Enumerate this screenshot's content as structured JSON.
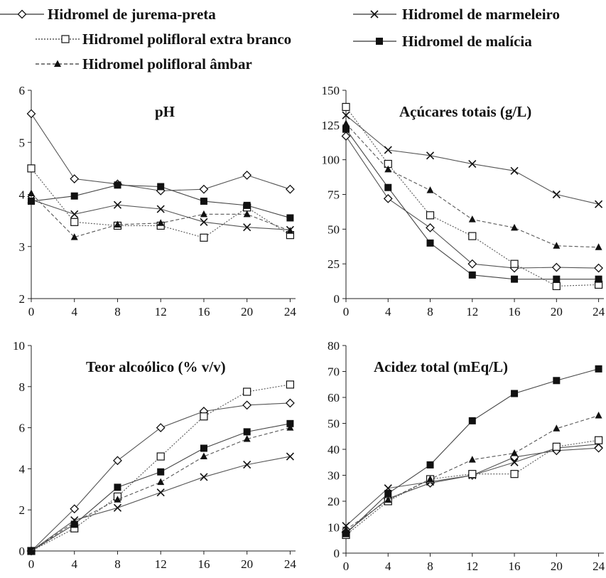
{
  "legend": [
    {
      "label": "Hidromel de jurema-preta",
      "marker": "diamond-open",
      "line": "solid"
    },
    {
      "label": "Hidromel de marmeleiro",
      "marker": "x",
      "line": "solid"
    },
    {
      "label": "Hidromel polifloral extra branco",
      "marker": "square-open",
      "line": "dotted"
    },
    {
      "label": "Hidromel de malícia",
      "marker": "square-filled",
      "line": "solid"
    },
    {
      "label": "Hidromel polifloral âmbar",
      "marker": "triangle-filled",
      "line": "dashed"
    }
  ],
  "chart_data": [
    {
      "type": "line",
      "title": "pH",
      "xlabel": "",
      "ylabel": "",
      "x": [
        0,
        4,
        8,
        12,
        16,
        20,
        24
      ],
      "xlim": [
        0,
        24.5
      ],
      "ylim": [
        2,
        6
      ],
      "xticks": [
        0,
        4,
        8,
        12,
        16,
        20,
        24
      ],
      "yticks": [
        2,
        3,
        4,
        5,
        6
      ],
      "grid": false,
      "series": [
        {
          "name": "Hidromel de jurema-preta",
          "values": [
            5.55,
            4.3,
            4.2,
            4.07,
            4.1,
            4.37,
            4.1
          ]
        },
        {
          "name": "Hidromel de marmeleiro",
          "values": [
            3.9,
            3.62,
            3.8,
            3.72,
            3.47,
            3.37,
            3.32
          ]
        },
        {
          "name": "Hidromel polifloral extra branco",
          "values": [
            4.5,
            3.47,
            3.4,
            3.4,
            3.17,
            3.75,
            3.22
          ]
        },
        {
          "name": "Hidromel de malícia",
          "values": [
            3.87,
            3.97,
            4.18,
            4.15,
            3.87,
            3.79,
            3.55
          ]
        },
        {
          "name": "Hidromel polifloral âmbar",
          "values": [
            4.02,
            3.18,
            3.42,
            3.45,
            3.62,
            3.62,
            3.3
          ]
        }
      ]
    },
    {
      "type": "line",
      "title": "Açúcares totais (g/L)",
      "xlabel": "",
      "ylabel": "",
      "x": [
        0,
        4,
        8,
        12,
        16,
        20,
        24
      ],
      "xlim": [
        0,
        24.5
      ],
      "ylim": [
        0,
        150
      ],
      "xticks": [
        0,
        4,
        8,
        12,
        16,
        20,
        24
      ],
      "yticks": [
        0,
        25,
        50,
        75,
        100,
        125,
        150
      ],
      "grid": false,
      "series": [
        {
          "name": "Hidromel de jurema-preta",
          "values": [
            117,
            72,
            51,
            25,
            22,
            22.5,
            22
          ]
        },
        {
          "name": "Hidromel de marmeleiro",
          "values": [
            132,
            107,
            103,
            97,
            92,
            75,
            68
          ]
        },
        {
          "name": "Hidromel polifloral extra branco",
          "values": [
            138,
            97,
            60,
            45,
            25,
            9,
            10
          ]
        },
        {
          "name": "Hidromel de malícia",
          "values": [
            122,
            80,
            40,
            17,
            14,
            14,
            14
          ]
        },
        {
          "name": "Hidromel polifloral âmbar",
          "values": [
            126,
            93,
            78,
            57,
            51,
            38,
            37
          ]
        }
      ]
    },
    {
      "type": "line",
      "title": "Teor alcoólico (% v/v)",
      "xlabel": "",
      "ylabel": "",
      "x": [
        0,
        4,
        8,
        12,
        16,
        20,
        24
      ],
      "xlim": [
        0,
        24.5
      ],
      "ylim": [
        0,
        10
      ],
      "xticks": [
        0,
        4,
        8,
        12,
        16,
        20,
        24
      ],
      "yticks": [
        0,
        2,
        4,
        6,
        8,
        10
      ],
      "grid": false,
      "series": [
        {
          "name": "Hidromel de jurema-preta",
          "values": [
            0,
            2.05,
            4.4,
            6.0,
            6.8,
            7.1,
            7.2
          ]
        },
        {
          "name": "Hidromel de marmeleiro",
          "values": [
            0,
            1.5,
            2.1,
            2.85,
            3.6,
            4.2,
            4.6
          ]
        },
        {
          "name": "Hidromel polifloral extra branco",
          "values": [
            0,
            1.1,
            2.65,
            4.6,
            6.55,
            7.75,
            8.1
          ]
        },
        {
          "name": "Hidromel de malícia",
          "values": [
            0,
            1.3,
            3.1,
            3.85,
            5.0,
            5.8,
            6.2
          ]
        },
        {
          "name": "Hidromel polifloral âmbar",
          "values": [
            0,
            1.4,
            2.5,
            3.35,
            4.6,
            5.45,
            6.0
          ]
        }
      ]
    },
    {
      "type": "line",
      "title": "Acidez total (mEq/L)",
      "xlabel": "",
      "ylabel": "",
      "x": [
        0,
        4,
        8,
        12,
        16,
        20,
        24
      ],
      "xlim": [
        0,
        24.5
      ],
      "ylim": [
        0,
        80
      ],
      "xticks": [
        0,
        4,
        8,
        12,
        16,
        20,
        24
      ],
      "yticks": [
        0,
        10,
        20,
        30,
        40,
        50,
        60,
        70,
        80
      ],
      "grid": false,
      "series": [
        {
          "name": "Hidromel de jurema-preta",
          "values": [
            8,
            21,
            27,
            30,
            37,
            39.5,
            40.5
          ]
        },
        {
          "name": "Hidromel de marmeleiro",
          "values": [
            10.5,
            25,
            27.5,
            30,
            35,
            40.5,
            42
          ]
        },
        {
          "name": "Hidromel polifloral extra branco",
          "values": [
            7,
            20,
            28.5,
            30.5,
            30.5,
            41,
            43.5
          ]
        },
        {
          "name": "Hidromel de malícia",
          "values": [
            7.5,
            23,
            34,
            51,
            61.5,
            66.5,
            71
          ]
        },
        {
          "name": "Hidromel polifloral âmbar",
          "values": [
            9,
            20.5,
            28.5,
            36,
            38.5,
            48,
            53
          ]
        }
      ]
    }
  ]
}
